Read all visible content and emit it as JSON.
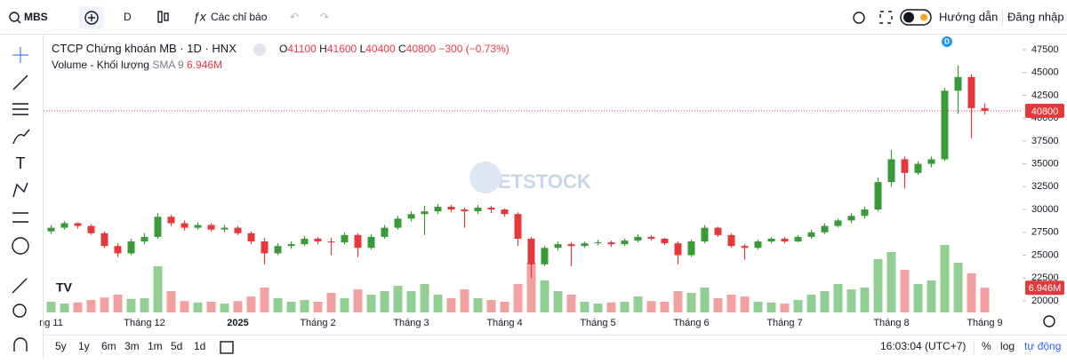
{
  "toolbar": {
    "symbol": "MBS",
    "interval": "D",
    "indicators": "Các chỉ báo",
    "guide": "Hướng dẫn",
    "login": "Đăng nhập"
  },
  "legend": {
    "title": "CTCP Chứng khoán MB · 1D · HNX",
    "o": "O",
    "h": "H",
    "l": "L",
    "c": "C",
    "change": "−300 (−0.73%)",
    "volume": "Volume - Khối lượng",
    "sma": "SMA 9"
  },
  "watermark": "VIETSTOCK",
  "dividend_marker": "D",
  "bottom": {
    "ranges": [
      "5y",
      "1y",
      "6m",
      "3m",
      "1m",
      "5d",
      "1d"
    ],
    "time": "16:03:04 (UTC+7)",
    "percent": "%",
    "log": "log",
    "auto": "tự động"
  },
  "chart_data": {
    "type": "candlestick",
    "categories": [
      "ng 11",
      null,
      null,
      null,
      null,
      null,
      null,
      "Tháng 12",
      null,
      null,
      null,
      null,
      null,
      null,
      "2025",
      null,
      null,
      null,
      null,
      null,
      "Tháng 2",
      null,
      null,
      null,
      null,
      null,
      null,
      "Tháng 3",
      null,
      null,
      null,
      null,
      null,
      null,
      "Tháng 4",
      null,
      null,
      null,
      null,
      null,
      null,
      "Tháng 5",
      null,
      null,
      null,
      null,
      null,
      null,
      "Tháng 6",
      null,
      null,
      null,
      null,
      null,
      null,
      "Tháng 7",
      null,
      null,
      null,
      null,
      null,
      null,
      null,
      "Tháng 8",
      null,
      null,
      null,
      null,
      null,
      null,
      "Tháng 9"
    ],
    "open": [
      27600,
      28000,
      28500,
      28200,
      27400,
      26000,
      25200,
      26500,
      27000,
      29200,
      28500,
      28000,
      28300,
      27800,
      28000,
      27400,
      26500,
      25200,
      26000,
      26200,
      26800,
      26500,
      26400,
      27200,
      25800,
      27000,
      28000,
      29000,
      29500,
      29800,
      30300,
      30000,
      29800,
      30200,
      30000,
      29500,
      26800,
      24000,
      25800,
      26200,
      26000,
      26300,
      26400,
      26200,
      26600,
      27000,
      26800,
      26300,
      25000,
      26500,
      28000,
      27200,
      26000,
      25800,
      26500,
      26800,
      26500,
      27000,
      27500,
      28200,
      28800,
      29300,
      30000,
      33000,
      35500,
      34000,
      35000,
      35500,
      43000,
      44500,
      41100
    ],
    "high": [
      28300,
      28700,
      28600,
      28400,
      27600,
      26300,
      26800,
      27400,
      29600,
      29400,
      28800,
      28600,
      28500,
      28300,
      28200,
      27600,
      26900,
      26300,
      26500,
      27100,
      27000,
      26900,
      27500,
      27400,
      27300,
      28300,
      29300,
      29800,
      30400,
      30600,
      30500,
      30200,
      30500,
      30400,
      30100,
      29700,
      27000,
      26000,
      26500,
      26400,
      26500,
      26700,
      26600,
      26800,
      27300,
      27200,
      26900,
      26500,
      26700,
      28300,
      28100,
      27400,
      26200,
      26700,
      27000,
      27000,
      27200,
      27800,
      28500,
      29000,
      29600,
      30300,
      33500,
      36500,
      35800,
      35300,
      35800,
      43300,
      45800,
      44800,
      41600
    ],
    "low": [
      27300,
      27800,
      27900,
      27200,
      25800,
      24800,
      25000,
      26200,
      26800,
      28200,
      27700,
      27800,
      27600,
      27500,
      27200,
      26200,
      24000,
      25000,
      25700,
      26000,
      26200,
      25000,
      26200,
      24800,
      25600,
      26800,
      27800,
      28700,
      27200,
      29500,
      29700,
      28000,
      29500,
      29600,
      29200,
      26000,
      22500,
      23800,
      25500,
      23800,
      25800,
      26100,
      25900,
      26000,
      26400,
      26600,
      26100,
      24000,
      24800,
      26300,
      27000,
      25800,
      24500,
      25600,
      26300,
      26300,
      26400,
      26800,
      27300,
      28000,
      28500,
      29000,
      29800,
      32500,
      32300,
      33800,
      34600,
      35300,
      40500,
      37800,
      40400
    ],
    "close": [
      28000,
      28500,
      28200,
      27400,
      26000,
      25200,
      26500,
      27000,
      29200,
      28500,
      28000,
      28300,
      27800,
      28000,
      27400,
      26500,
      25200,
      26000,
      26200,
      26800,
      26500,
      26400,
      27200,
      25800,
      27000,
      28000,
      29000,
      29500,
      29800,
      30300,
      30000,
      29800,
      30200,
      30000,
      29500,
      26800,
      24000,
      25800,
      26200,
      26000,
      26300,
      26400,
      26200,
      26600,
      27000,
      26800,
      26300,
      25000,
      26500,
      28000,
      27200,
      26000,
      25800,
      26500,
      26800,
      26500,
      27000,
      27500,
      28200,
      28800,
      29300,
      30000,
      33000,
      35500,
      34000,
      35000,
      35500,
      43000,
      44500,
      41100,
      40800
    ],
    "volume": [
      3000000,
      2500000,
      2800000,
      3500000,
      4200000,
      5000000,
      3800000,
      4000000,
      13000000,
      6000000,
      3200000,
      2800000,
      3000000,
      2500000,
      3200000,
      4500000,
      7000000,
      4000000,
      3000000,
      3500000,
      3000000,
      5500000,
      4000000,
      6500000,
      5000000,
      6000000,
      7500000,
      6000000,
      8000000,
      5000000,
      4000000,
      6500000,
      4000000,
      3500000,
      3000000,
      8000000,
      14000000,
      9000000,
      6000000,
      5000000,
      3000000,
      2500000,
      2800000,
      3000000,
      4500000,
      3200000,
      3000000,
      6000000,
      5500000,
      7000000,
      4000000,
      5000000,
      4500000,
      3000000,
      2800000,
      2500000,
      3500000,
      5000000,
      6000000,
      8000000,
      6500000,
      7000000,
      15000000,
      17000000,
      12000000,
      8000000,
      9000000,
      19000000,
      14000000,
      11000000,
      6946000
    ],
    "volume_badge": "6.946M",
    "ylim": [
      18440,
      49050
    ],
    "yticks": [
      20000,
      22500,
      25000,
      27500,
      30000,
      32500,
      35000,
      37500,
      40000,
      42500,
      45000,
      47500
    ],
    "y2lim": [
      0,
      30000000
    ],
    "up_color": "#3a9a3a",
    "down_color": "#e5383b",
    "volume_up_color": "#93cf93",
    "volume_down_color": "#f2a0a0"
  }
}
